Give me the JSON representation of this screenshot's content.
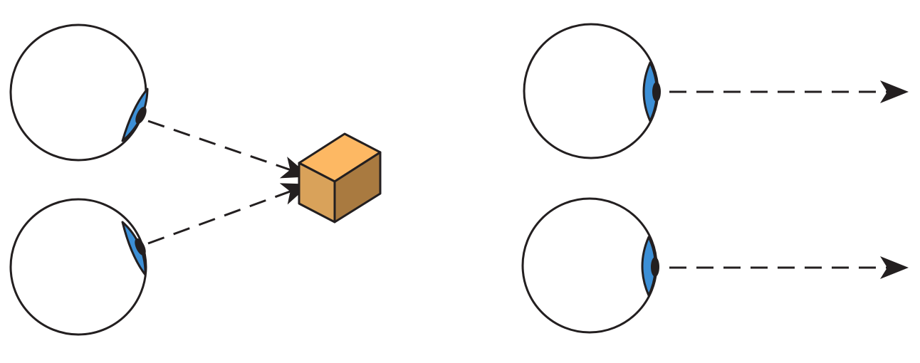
{
  "colors": {
    "background": "#ffffff",
    "outline": "#231f20",
    "iris": "#3c8fd6",
    "pupil": "#231f20",
    "cube_top": "#fdb863",
    "cube_front": "#d9a25a",
    "cube_side": "#a97a40",
    "arrow": "#231f20"
  },
  "left_panel": {
    "description_free": true,
    "eyes": [
      {
        "id": "left-top-eye",
        "looking_at": "cube"
      },
      {
        "id": "left-bottom-eye",
        "looking_at": "cube"
      }
    ],
    "target_icon": "cube-icon"
  },
  "right_panel": {
    "eyes": [
      {
        "id": "right-top-eye",
        "looking_at": "infinity"
      },
      {
        "id": "right-bottom-eye",
        "looking_at": "infinity"
      }
    ]
  }
}
